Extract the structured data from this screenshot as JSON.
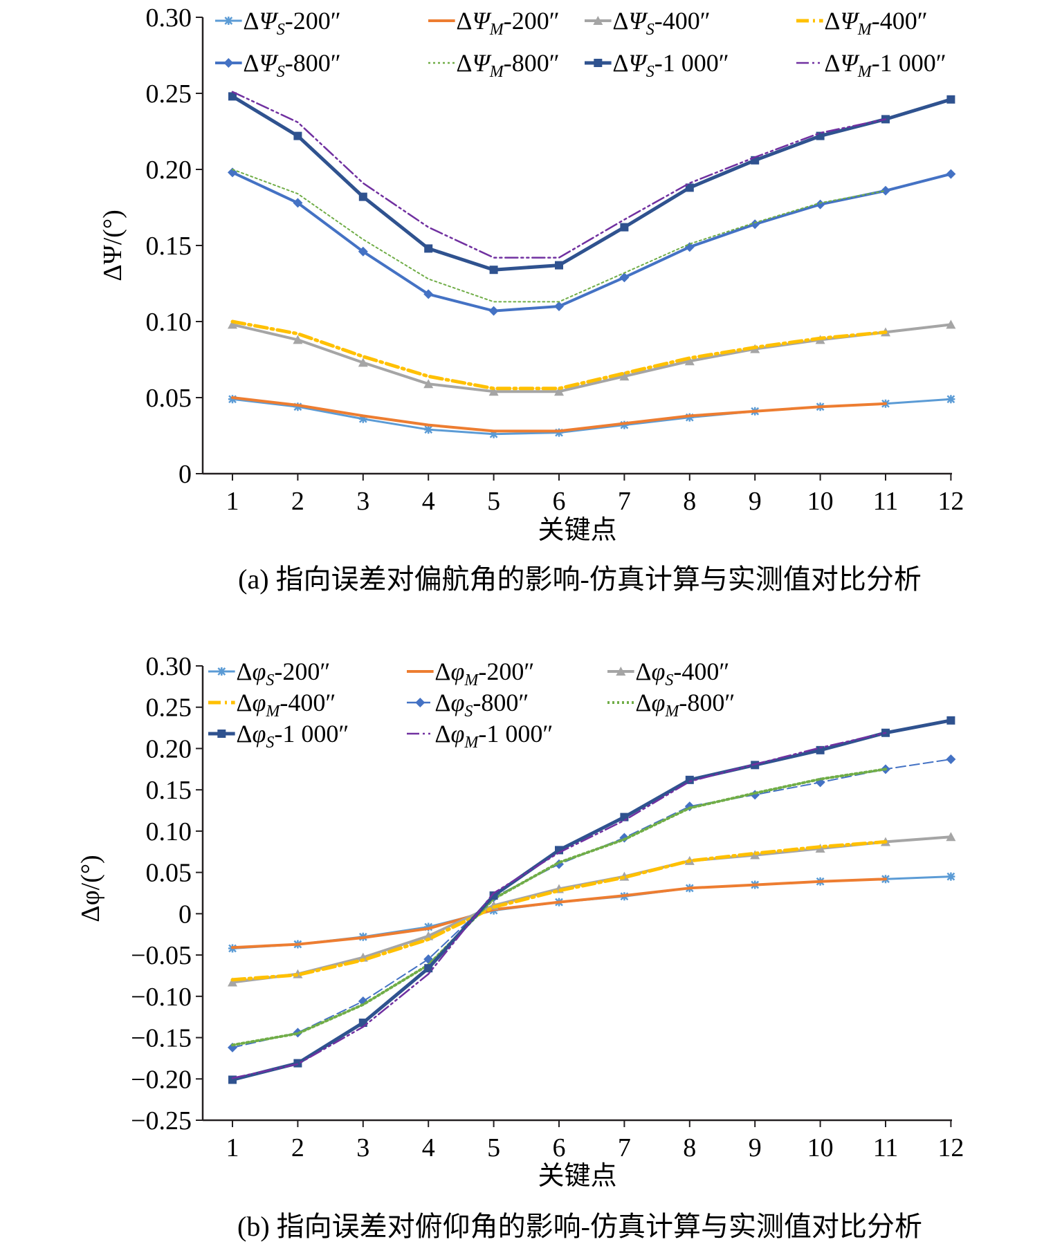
{
  "figure": {
    "caption_a": "(a) 指向误差对偏航角的影响-仿真计算与实测值对比分析",
    "caption_b": "(b) 指向误差对俯仰角的影响-仿真计算与实测值对比分析"
  },
  "chart_data": [
    {
      "type": "line",
      "title": "",
      "xlabel": "关键点",
      "ylabel": "ΔΨ/(°)",
      "categories": [
        "1",
        "2",
        "3",
        "4",
        "5",
        "6",
        "7",
        "8",
        "9",
        "10",
        "11",
        "12"
      ],
      "ylim": [
        0,
        0.3
      ],
      "yticks": [
        0,
        0.05,
        0.1,
        0.15,
        0.2,
        0.25,
        0.3
      ],
      "ytick_labels": [
        "0",
        "0.05",
        "0.10",
        "0.15",
        "0.20",
        "0.25",
        "0.30"
      ],
      "grid": false,
      "legend": "top",
      "legend_columns": 4,
      "series": [
        {
          "name": "ΔΨS-200″",
          "symbol": "Ψ",
          "sub": "S",
          "angle": "200″",
          "color": "#5b9bd5",
          "style": "solid",
          "width": 3,
          "marker": "star",
          "values": [
            0.049,
            0.044,
            0.036,
            0.029,
            0.026,
            0.027,
            0.032,
            0.037,
            0.041,
            0.044,
            0.046,
            0.049
          ]
        },
        {
          "name": "ΔΨM-200″",
          "symbol": "Ψ",
          "sub": "M",
          "angle": "200″",
          "color": "#ed7d31",
          "style": "solid",
          "width": 4,
          "marker": "none",
          "values": [
            0.05,
            0.045,
            0.038,
            0.032,
            0.028,
            0.028,
            0.033,
            0.038,
            0.041,
            0.044,
            0.046,
            null
          ]
        },
        {
          "name": "ΔΨS-400″",
          "symbol": "Ψ",
          "sub": "S",
          "angle": "400″",
          "color": "#a5a5a5",
          "style": "solid",
          "width": 4,
          "marker": "triangle",
          "values": [
            0.098,
            0.088,
            0.073,
            0.059,
            0.054,
            0.054,
            0.064,
            0.074,
            0.082,
            0.088,
            0.093,
            0.098
          ]
        },
        {
          "name": "ΔΨM-400″",
          "symbol": "Ψ",
          "sub": "M",
          "angle": "400″",
          "color": "#ffc000",
          "style": "dashdot",
          "width": 5,
          "marker": "none",
          "values": [
            0.1,
            0.092,
            0.077,
            0.064,
            0.056,
            0.056,
            0.066,
            0.076,
            0.083,
            0.089,
            0.093,
            null
          ]
        },
        {
          "name": "ΔΨS-800″",
          "symbol": "Ψ",
          "sub": "S",
          "angle": "800″",
          "color": "#4472c4",
          "style": "solid",
          "width": 4,
          "marker": "diamond",
          "values": [
            0.198,
            0.178,
            0.146,
            0.118,
            0.107,
            0.11,
            0.129,
            0.149,
            0.164,
            0.177,
            0.186,
            0.197
          ]
        },
        {
          "name": "ΔΨM-800″",
          "symbol": "Ψ",
          "sub": "M",
          "angle": "800″",
          "color": "#70ad47",
          "style": "dotted",
          "width": 2,
          "marker": "none",
          "values": [
            0.2,
            0.184,
            0.154,
            0.128,
            0.113,
            0.113,
            0.132,
            0.151,
            0.165,
            0.178,
            0.186,
            null
          ]
        },
        {
          "name": "ΔΨS-1 000″",
          "symbol": "Ψ",
          "sub": "S",
          "angle": "1 000″",
          "color": "#2f528f",
          "style": "solid",
          "width": 5,
          "marker": "square",
          "values": [
            0.248,
            0.222,
            0.182,
            0.148,
            0.134,
            0.137,
            0.162,
            0.188,
            0.206,
            0.222,
            0.233,
            0.246
          ]
        },
        {
          "name": "ΔΨM-1 000″",
          "symbol": "Ψ",
          "sub": "M",
          "angle": "1 000″",
          "color": "#7030a0",
          "style": "dashdotdot",
          "width": 2.5,
          "marker": "none",
          "values": [
            0.251,
            0.231,
            0.191,
            0.162,
            0.142,
            0.142,
            0.167,
            0.191,
            0.208,
            0.224,
            0.233,
            null
          ]
        }
      ]
    },
    {
      "type": "line",
      "title": "",
      "xlabel": "关键点",
      "ylabel": "Δφ/(°)",
      "categories": [
        "1",
        "2",
        "3",
        "4",
        "5",
        "6",
        "7",
        "8",
        "9",
        "10",
        "11",
        "12"
      ],
      "ylim": [
        -0.25,
        0.3
      ],
      "yticks": [
        -0.25,
        -0.2,
        -0.15,
        -0.1,
        -0.05,
        0,
        0.05,
        0.1,
        0.15,
        0.2,
        0.25,
        0.3
      ],
      "ytick_labels": [
        "−0.25",
        "−0.20",
        "−0.15",
        "−0.10",
        "−0.05",
        "0",
        "0.05",
        "0.10",
        "0.15",
        "0.20",
        "0.25",
        "0.30"
      ],
      "grid": false,
      "legend": "top-left",
      "legend_columns": 3,
      "series": [
        {
          "name": "ΔφS-200″",
          "symbol": "φ",
          "sub": "S",
          "angle": "200″",
          "color": "#5b9bd5",
          "style": "solid",
          "width": 3,
          "marker": "star",
          "values": [
            -0.042,
            -0.037,
            -0.028,
            -0.016,
            0.004,
            0.014,
            0.021,
            0.031,
            0.035,
            0.039,
            0.042,
            0.045
          ]
        },
        {
          "name": "ΔφM-200″",
          "symbol": "φ",
          "sub": "M",
          "angle": "200″",
          "color": "#ed7d31",
          "style": "solid",
          "width": 4,
          "marker": "none",
          "values": [
            -0.041,
            -0.037,
            -0.029,
            -0.018,
            0.005,
            0.014,
            0.022,
            0.031,
            0.035,
            0.039,
            0.042,
            null
          ]
        },
        {
          "name": "ΔφS-400″",
          "symbol": "φ",
          "sub": "S",
          "angle": "400″",
          "color": "#a5a5a5",
          "style": "solid",
          "width": 4,
          "marker": "triangle",
          "values": [
            -0.083,
            -0.073,
            -0.053,
            -0.027,
            0.01,
            0.03,
            0.045,
            0.064,
            0.071,
            0.079,
            0.087,
            0.093
          ]
        },
        {
          "name": "ΔφM-400″",
          "symbol": "φ",
          "sub": "M",
          "angle": "400″",
          "color": "#ffc000",
          "style": "dashdot",
          "width": 5,
          "marker": "none",
          "values": [
            -0.08,
            -0.074,
            -0.056,
            -0.031,
            0.008,
            0.028,
            0.044,
            0.064,
            0.073,
            0.081,
            0.087,
            null
          ]
        },
        {
          "name": "ΔφS-800″",
          "symbol": "φ",
          "sub": "S",
          "angle": "800″",
          "color": "#4472c4",
          "style": "dashed",
          "width": 2,
          "marker": "diamond",
          "values": [
            -0.162,
            -0.144,
            -0.106,
            -0.055,
            0.02,
            0.06,
            0.092,
            0.13,
            0.144,
            0.159,
            0.175,
            0.187
          ]
        },
        {
          "name": "ΔφM-800″",
          "symbol": "φ",
          "sub": "M",
          "angle": "800″",
          "color": "#70ad47",
          "style": "dotted",
          "width": 4,
          "marker": "none",
          "values": [
            -0.159,
            -0.145,
            -0.11,
            -0.062,
            0.018,
            0.062,
            0.09,
            0.128,
            0.146,
            0.163,
            0.175,
            null
          ]
        },
        {
          "name": "ΔφS-1 000″",
          "symbol": "φ",
          "sub": "S",
          "angle": "1 000″",
          "color": "#2f528f",
          "style": "solid",
          "width": 5,
          "marker": "square",
          "values": [
            -0.201,
            -0.181,
            -0.132,
            -0.066,
            0.022,
            0.077,
            0.117,
            0.162,
            0.18,
            0.198,
            0.219,
            0.234
          ]
        },
        {
          "name": "ΔφM-1 000″",
          "symbol": "φ",
          "sub": "M",
          "angle": "1 000″",
          "color": "#7030a0",
          "style": "dashdotdot",
          "width": 2.5,
          "marker": "none",
          "values": [
            -0.199,
            -0.182,
            -0.137,
            -0.073,
            0.025,
            0.074,
            0.113,
            0.16,
            0.181,
            0.201,
            0.219,
            null
          ]
        }
      ]
    }
  ]
}
